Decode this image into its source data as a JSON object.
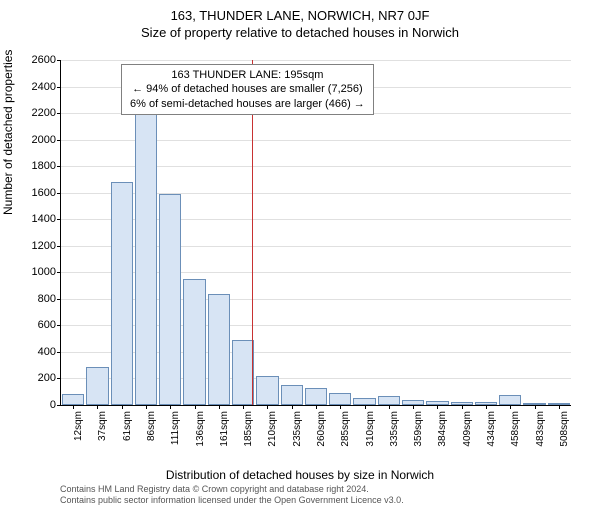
{
  "title_line1": "163, THUNDER LANE, NORWICH, NR7 0JF",
  "title_line2": "Size of property relative to detached houses in Norwich",
  "ylabel": "Number of detached properties",
  "xlabel": "Distribution of detached houses by size in Norwich",
  "chart": {
    "type": "histogram",
    "xlim": [
      0,
      520
    ],
    "ylim": [
      0,
      2600
    ],
    "ytick_step": 200,
    "xtick_labels": [
      "12sqm",
      "37sqm",
      "61sqm",
      "86sqm",
      "111sqm",
      "136sqm",
      "161sqm",
      "185sqm",
      "210sqm",
      "235sqm",
      "260sqm",
      "285sqm",
      "310sqm",
      "335sqm",
      "359sqm",
      "384sqm",
      "409sqm",
      "434sqm",
      "458sqm",
      "483sqm",
      "508sqm"
    ],
    "bar_values": [
      80,
      290,
      1680,
      2190,
      1590,
      950,
      840,
      490,
      220,
      150,
      130,
      90,
      55,
      70,
      40,
      30,
      25,
      25,
      75,
      15,
      15
    ],
    "bar_color": "#d7e4f4",
    "bar_border_color": "#6b8fb8",
    "grid_color": "#e0e0e0",
    "background_color": "#ffffff",
    "reference_line": {
      "x_value": 195,
      "color": "#c83232"
    },
    "annotation": {
      "line1": "163 THUNDER LANE: 195sqm",
      "line2": "← 94% of detached houses are smaller (7,256)",
      "line3": "6% of semi-detached houses are larger (466) →",
      "border_color": "#808080"
    }
  },
  "attribution_line1": "Contains HM Land Registry data © Crown copyright and database right 2024.",
  "attribution_line2": "Contains public sector information licensed under the Open Government Licence v3.0."
}
